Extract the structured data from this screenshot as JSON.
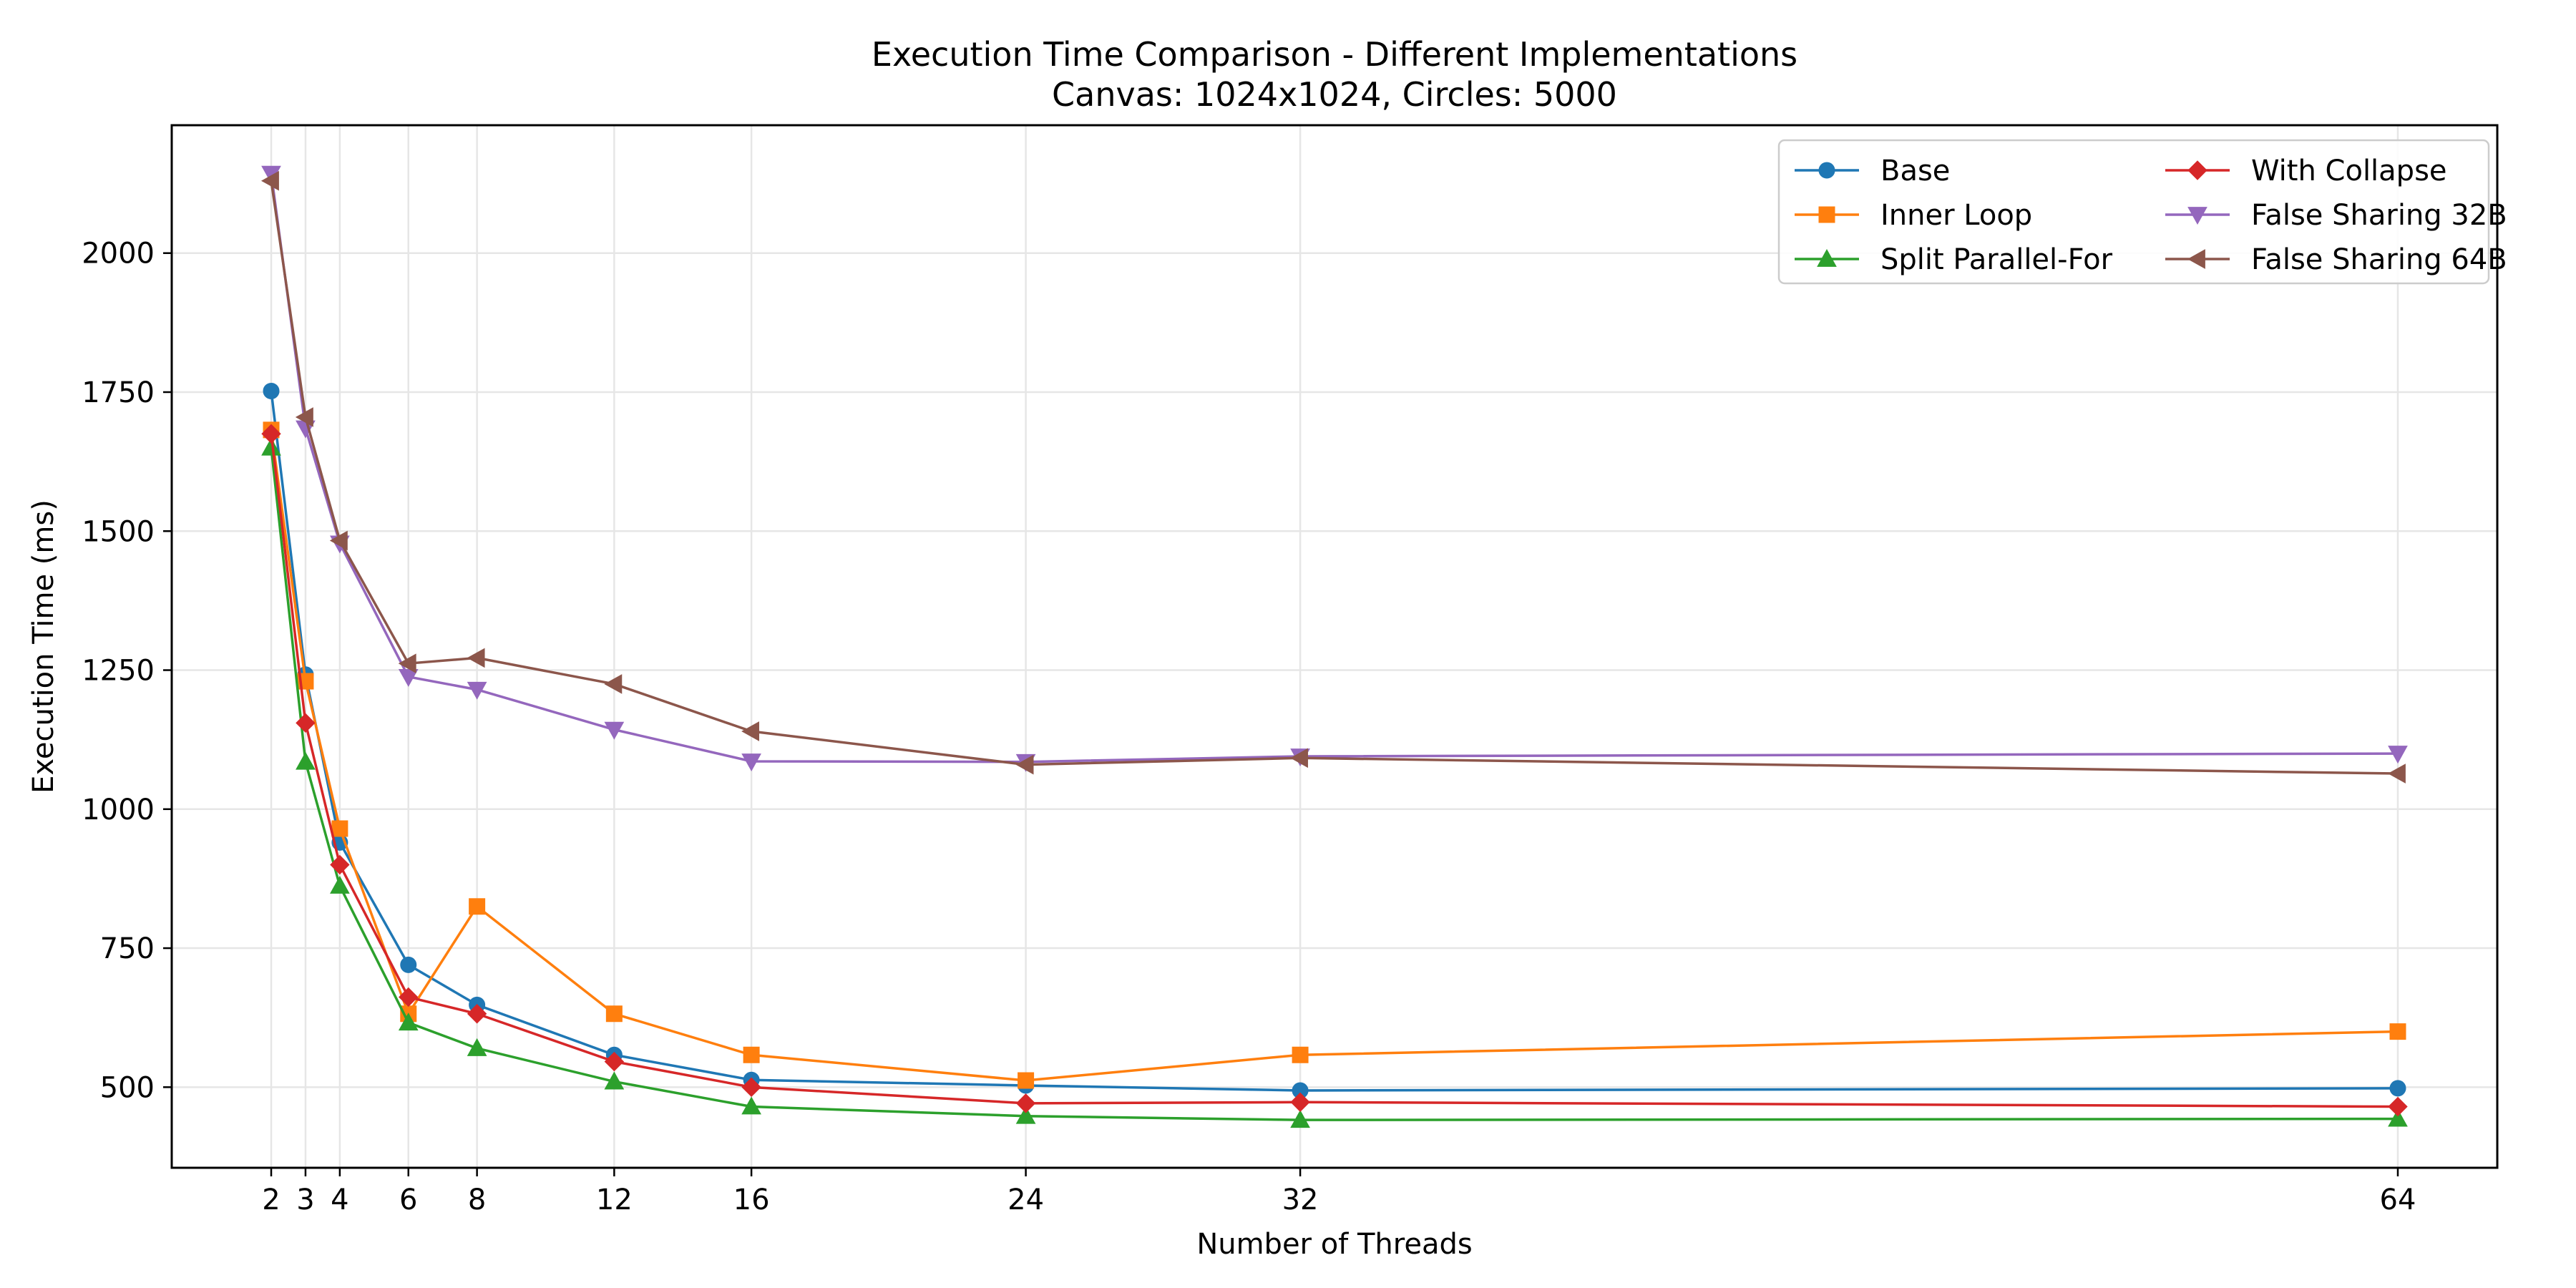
{
  "chart_data": {
    "type": "line",
    "title": "Execution Time Comparison - Different Implementations",
    "subtitle": "Canvas: 1024x1024, Circles: 5000",
    "xlabel": "Number of Threads",
    "ylabel": "Execution Time (ms)",
    "x": [
      2,
      3,
      4,
      6,
      8,
      12,
      16,
      24,
      32,
      64
    ],
    "xticks": [
      2,
      3,
      4,
      6,
      8,
      12,
      16,
      24,
      32,
      64
    ],
    "yticks": [
      500,
      750,
      1000,
      1250,
      1500,
      1750,
      2000
    ],
    "xlim": [
      -0.9,
      66.9
    ],
    "ylim": [
      355,
      2230
    ],
    "grid": true,
    "legend_position": "top-right",
    "legend_columns": 2,
    "series": [
      {
        "name": "Base",
        "color": "#1f77b4",
        "marker": "circle",
        "values": [
          1752,
          1242,
          940,
          720,
          648,
          558,
          513,
          503,
          494,
          498
        ]
      },
      {
        "name": "Inner Loop",
        "color": "#ff7f0e",
        "marker": "square",
        "values": [
          1682,
          1230,
          965,
          632,
          825,
          632,
          558,
          512,
          558,
          600
        ]
      },
      {
        "name": "Split Parallel-For",
        "color": "#2ca02c",
        "marker": "triangle-up",
        "values": [
          1650,
          1085,
          862,
          616,
          570,
          510,
          465,
          448,
          441,
          443
        ]
      },
      {
        "name": "With Collapse",
        "color": "#d62728",
        "marker": "diamond",
        "values": [
          1675,
          1155,
          900,
          662,
          632,
          546,
          500,
          471,
          473,
          465
        ]
      },
      {
        "name": "False Sharing 32B",
        "color": "#9467bd",
        "marker": "triangle-down",
        "values": [
          2143,
          1685,
          1478,
          1238,
          1215,
          1143,
          1086,
          1085,
          1095,
          1100
        ]
      },
      {
        "name": "False Sharing 64B",
        "color": "#8c564b",
        "marker": "triangle-left",
        "values": [
          2130,
          1705,
          1483,
          1262,
          1272,
          1225,
          1140,
          1080,
          1092,
          1064
        ]
      }
    ]
  }
}
